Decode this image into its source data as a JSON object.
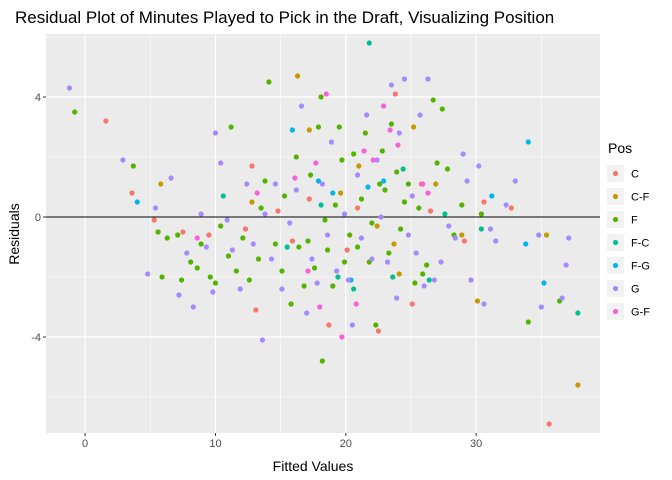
{
  "chart_data": {
    "type": "scatter",
    "title": "Residual Plot of Minutes Played to Pick in the Draft, Visualizing Position",
    "xlabel": "Fitted Values",
    "ylabel": "Residuals",
    "xlim": [
      -3,
      39.5
    ],
    "ylim": [
      -7.2,
      6.1
    ],
    "x_ticks": [
      0,
      10,
      20,
      30
    ],
    "y_ticks": [
      -4,
      0,
      4
    ],
    "y_tick_labels": [
      "-4",
      "0",
      "4"
    ],
    "grid": true,
    "hline": 0,
    "legend": {
      "title": "Pos",
      "position": "right"
    },
    "series": [
      {
        "name": "C",
        "color": "#F8766D",
        "points": [
          [
            1.6,
            3.2
          ],
          [
            3.6,
            0.8
          ],
          [
            5.3,
            -0.1
          ],
          [
            7.5,
            -0.5
          ],
          [
            9.5,
            -0.6
          ],
          [
            12.3,
            -0.4
          ],
          [
            12.8,
            1.7
          ],
          [
            13.1,
            -3.1
          ],
          [
            14.8,
            0.2
          ],
          [
            15.9,
            -0.8
          ],
          [
            17.2,
            0.6
          ],
          [
            18.7,
            -3.6
          ],
          [
            20.1,
            -1.1
          ],
          [
            20.9,
            0.3
          ],
          [
            22.5,
            -3.8
          ],
          [
            23.8,
            4.1
          ],
          [
            25.1,
            -2.9
          ],
          [
            25.8,
            1.1
          ],
          [
            26.5,
            0.2
          ],
          [
            29.1,
            -0.8
          ],
          [
            30.6,
            0.5
          ],
          [
            32.7,
            0.3
          ],
          [
            35.6,
            -6.9
          ]
        ]
      },
      {
        "name": "C-F",
        "color": "#C49A00",
        "points": [
          [
            5.8,
            1.1
          ],
          [
            12.8,
            0.5
          ],
          [
            16.3,
            4.7
          ],
          [
            17.2,
            2.9
          ],
          [
            19.6,
            0.8
          ],
          [
            21.0,
            1.7
          ],
          [
            22.4,
            -0.3
          ],
          [
            23.7,
            -0.9
          ],
          [
            24.1,
            -1.9
          ],
          [
            25.2,
            3.0
          ],
          [
            26.9,
            1.1
          ],
          [
            28.9,
            -0.6
          ],
          [
            30.1,
            -2.8
          ],
          [
            35.4,
            -0.6
          ],
          [
            37.8,
            -5.6
          ]
        ]
      },
      {
        "name": "F",
        "color": "#53B400",
        "points": [
          [
            -0.8,
            3.5
          ],
          [
            3.7,
            1.7
          ],
          [
            5.6,
            -0.5
          ],
          [
            5.9,
            -2.0
          ],
          [
            6.3,
            -0.7
          ],
          [
            7.1,
            -0.6
          ],
          [
            7.4,
            -2.1
          ],
          [
            8.1,
            -1.5
          ],
          [
            8.6,
            -1.7
          ],
          [
            8.9,
            -0.9
          ],
          [
            9.6,
            -2.0
          ],
          [
            10.0,
            -2.2
          ],
          [
            10.4,
            -0.3
          ],
          [
            11.0,
            -1.3
          ],
          [
            11.6,
            -1.8
          ],
          [
            11.2,
            3.0
          ],
          [
            12.1,
            -0.7
          ],
          [
            12.6,
            -2.1
          ],
          [
            13.3,
            -1.4
          ],
          [
            13.5,
            0.3
          ],
          [
            13.8,
            1.2
          ],
          [
            14.1,
            4.5
          ],
          [
            14.6,
            -0.9
          ],
          [
            15.1,
            -1.8
          ],
          [
            15.3,
            0.7
          ],
          [
            15.8,
            -2.9
          ],
          [
            16.2,
            2.0
          ],
          [
            16.4,
            -1.0
          ],
          [
            16.8,
            -2.3
          ],
          [
            17.1,
            -0.8
          ],
          [
            17.3,
            1.4
          ],
          [
            17.6,
            -1.7
          ],
          [
            17.9,
            3.0
          ],
          [
            18.1,
            4.0
          ],
          [
            18.2,
            -4.8
          ],
          [
            18.4,
            -0.1
          ],
          [
            18.6,
            -1.1
          ],
          [
            19.0,
            -2.3
          ],
          [
            19.2,
            0.4
          ],
          [
            19.5,
            3.0
          ],
          [
            19.7,
            1.9
          ],
          [
            19.9,
            -1.5
          ],
          [
            20.3,
            -0.6
          ],
          [
            20.6,
            2.1
          ],
          [
            20.9,
            -1.0
          ],
          [
            21.2,
            0.6
          ],
          [
            21.5,
            2.8
          ],
          [
            21.8,
            -1.5
          ],
          [
            22.0,
            -0.2
          ],
          [
            22.3,
            -3.6
          ],
          [
            22.6,
            1.1
          ],
          [
            22.8,
            2.2
          ],
          [
            23.0,
            0.9
          ],
          [
            23.3,
            -1.2
          ],
          [
            23.5,
            3.1
          ],
          [
            23.9,
            1.5
          ],
          [
            24.2,
            -0.4
          ],
          [
            24.5,
            0.5
          ],
          [
            24.8,
            1.1
          ],
          [
            25.3,
            -2.2
          ],
          [
            25.6,
            0.3
          ],
          [
            25.9,
            -1.9
          ],
          [
            26.2,
            -1.6
          ],
          [
            26.7,
            3.9
          ],
          [
            27.0,
            1.8
          ],
          [
            27.4,
            3.6
          ],
          [
            27.8,
            1.6
          ],
          [
            28.3,
            -0.6
          ],
          [
            28.9,
            0.4
          ],
          [
            30.4,
            0.1
          ],
          [
            34.0,
            -3.5
          ],
          [
            36.4,
            -2.8
          ]
        ]
      },
      {
        "name": "F-C",
        "color": "#00C094",
        "points": [
          [
            10.6,
            0.7
          ],
          [
            15.5,
            -1.0
          ],
          [
            18.1,
            0.4
          ],
          [
            19.4,
            -2.0
          ],
          [
            20.6,
            -2.4
          ],
          [
            21.8,
            5.8
          ],
          [
            23.6,
            -2.0
          ],
          [
            24.4,
            1.6
          ],
          [
            26.4,
            -2.1
          ],
          [
            27.6,
            0.1
          ],
          [
            30.4,
            -0.4
          ],
          [
            37.8,
            -3.2
          ]
        ]
      },
      {
        "name": "F-G",
        "color": "#00B6EB",
        "points": [
          [
            4.0,
            0.5
          ],
          [
            15.9,
            2.9
          ],
          [
            17.9,
            1.2
          ],
          [
            19.0,
            0.8
          ],
          [
            20.4,
            -2.1
          ],
          [
            21.7,
            1.0
          ],
          [
            22.9,
            1.2
          ],
          [
            31.2,
            0.7
          ],
          [
            33.8,
            -0.9
          ],
          [
            34.0,
            2.5
          ],
          [
            35.2,
            -2.2
          ]
        ]
      },
      {
        "name": "G",
        "color": "#A58AFF",
        "points": [
          [
            -1.2,
            4.3
          ],
          [
            2.9,
            1.9
          ],
          [
            4.8,
            -1.9
          ],
          [
            5.4,
            0.3
          ],
          [
            6.6,
            1.3
          ],
          [
            7.2,
            -2.6
          ],
          [
            7.8,
            -1.2
          ],
          [
            8.3,
            -3.0
          ],
          [
            8.9,
            0.1
          ],
          [
            9.3,
            -1.0
          ],
          [
            9.8,
            -2.5
          ],
          [
            10.0,
            2.8
          ],
          [
            10.4,
            1.8
          ],
          [
            10.9,
            -0.1
          ],
          [
            11.3,
            -1.1
          ],
          [
            11.9,
            -2.4
          ],
          [
            12.4,
            1.1
          ],
          [
            12.9,
            -0.9
          ],
          [
            13.6,
            -4.1
          ],
          [
            13.8,
            0.1
          ],
          [
            14.3,
            -1.4
          ],
          [
            14.6,
            1.1
          ],
          [
            15.1,
            -2.4
          ],
          [
            15.7,
            -0.2
          ],
          [
            16.2,
            0.9
          ],
          [
            16.6,
            3.7
          ],
          [
            17.0,
            -3.2
          ],
          [
            17.4,
            -1.4
          ],
          [
            17.8,
            -2.2
          ],
          [
            18.2,
            1.1
          ],
          [
            18.6,
            -0.6
          ],
          [
            18.9,
            2.5
          ],
          [
            19.3,
            -1.8
          ],
          [
            19.9,
            0.1
          ],
          [
            20.2,
            -2.1
          ],
          [
            20.5,
            -3.6
          ],
          [
            20.9,
            1.4
          ],
          [
            21.2,
            -0.7
          ],
          [
            21.6,
            3.4
          ],
          [
            22.0,
            -1.4
          ],
          [
            22.4,
            1.9
          ],
          [
            22.7,
            0.0
          ],
          [
            23.2,
            -1.5
          ],
          [
            23.5,
            4.4
          ],
          [
            23.9,
            -2.7
          ],
          [
            24.1,
            2.8
          ],
          [
            24.5,
            4.6
          ],
          [
            24.8,
            -0.6
          ],
          [
            25.1,
            0.7
          ],
          [
            25.4,
            -1.2
          ],
          [
            25.7,
            3.4
          ],
          [
            26.0,
            -2.3
          ],
          [
            26.3,
            4.6
          ],
          [
            26.8,
            -2.1
          ],
          [
            27.3,
            -1.5
          ],
          [
            27.9,
            -0.3
          ],
          [
            28.4,
            -0.7
          ],
          [
            29.0,
            2.1
          ],
          [
            29.3,
            1.2
          ],
          [
            29.6,
            -2.1
          ],
          [
            30.2,
            1.7
          ],
          [
            30.6,
            -2.9
          ],
          [
            31.1,
            -0.4
          ],
          [
            31.5,
            -0.8
          ],
          [
            32.3,
            0.4
          ],
          [
            33.0,
            1.2
          ],
          [
            34.8,
            -0.6
          ],
          [
            35.0,
            -3.0
          ],
          [
            36.6,
            -2.7
          ],
          [
            37.1,
            -0.7
          ],
          [
            36.9,
            -1.6
          ]
        ]
      },
      {
        "name": "G-F",
        "color": "#FB61D7",
        "points": [
          [
            8.6,
            -0.7
          ],
          [
            13.2,
            0.8
          ],
          [
            16.1,
            1.3
          ],
          [
            17.1,
            -1.8
          ],
          [
            17.7,
            1.8
          ],
          [
            18.0,
            -3.0
          ],
          [
            18.5,
            4.1
          ],
          [
            19.7,
            -4.0
          ],
          [
            20.8,
            -2.9
          ],
          [
            21.4,
            2.2
          ],
          [
            22.1,
            1.9
          ],
          [
            22.9,
            3.7
          ],
          [
            23.4,
            2.9
          ],
          [
            24.0,
            2.4
          ],
          [
            25.9,
            1.1
          ],
          [
            26.3,
            0.8
          ]
        ]
      }
    ]
  }
}
